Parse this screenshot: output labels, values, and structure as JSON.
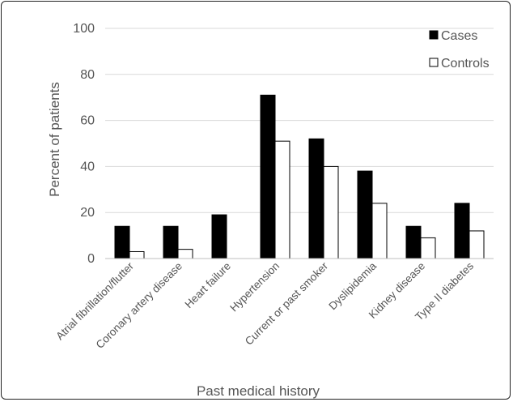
{
  "chart_data": {
    "type": "bar",
    "categories": [
      "Atrial fibrillation/flutter",
      "Coronary artery disease",
      "Heart failure",
      "Hypertension",
      "Current or past smoker",
      "Dyslipidemia",
      "Kidney disease",
      "Type II diabetes"
    ],
    "series": [
      {
        "name": "Cases",
        "values": [
          14,
          14,
          19,
          71,
          52,
          38,
          14,
          24
        ],
        "color": "#000000"
      },
      {
        "name": "Controls",
        "values": [
          3,
          4,
          0,
          51,
          40,
          24,
          9,
          12
        ],
        "color": "#ffffff"
      }
    ],
    "xlabel": "Past medical history",
    "ylabel": "Percent of patients",
    "ylim": [
      0,
      100
    ],
    "yticks": [
      "0",
      "20",
      "40",
      "60",
      "80",
      "100"
    ],
    "grid": true,
    "legend_position": "top-right"
  }
}
